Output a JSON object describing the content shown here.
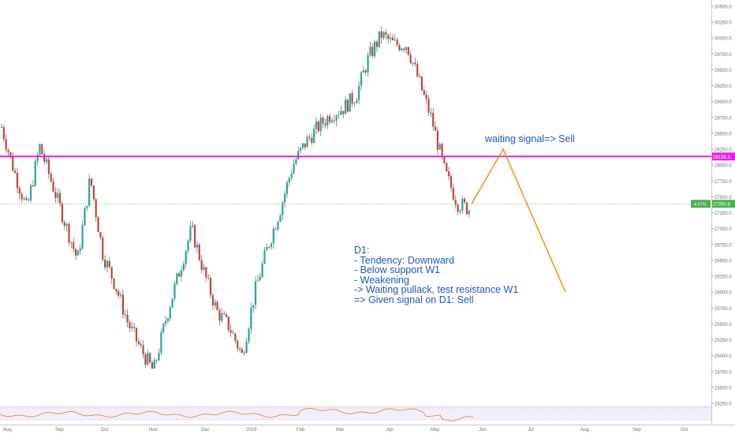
{
  "chart_data": {
    "type": "candlestick",
    "title": "",
    "xlabel": "",
    "ylabel": "",
    "ylim": [
      24150,
      30550
    ],
    "x_ticks": [
      "Aug",
      "Sep",
      "Oct",
      "Nov",
      "Dec",
      "2019",
      "Feb",
      "Mar",
      "Apr",
      "May",
      "Jun",
      "Jul",
      "Aug",
      "Sep",
      "Oct"
    ],
    "y_ticks": [
      "30500.0",
      "30250.0",
      "30000.0",
      "29750.0",
      "29500.0",
      "29250.0",
      "29000.0",
      "28750.0",
      "28500.0",
      "28250.0",
      "28000.0",
      "27750.0",
      "27500.0",
      "27250.0",
      "27000.0",
      "26750.0",
      "26500.0",
      "26250.0",
      "26000.0",
      "25750.0",
      "25500.0",
      "25250.0",
      "25000.0",
      "24750.0",
      "24500.0",
      "24250.0"
    ],
    "grid": false,
    "path_points": [
      [
        "Aug",
        28600
      ],
      [
        "Aug",
        27900
      ],
      [
        "Aug",
        27300
      ],
      [
        "Sep",
        28300
      ],
      [
        "Sep",
        27700
      ],
      [
        "Sep",
        27100
      ],
      [
        "Sep",
        26500
      ],
      [
        "Oct",
        27800
      ],
      [
        "Oct",
        26600
      ],
      [
        "Oct",
        26100
      ],
      [
        "Oct",
        25500
      ],
      [
        "Nov",
        25100
      ],
      [
        "Nov",
        24750
      ],
      [
        "Nov",
        25600
      ],
      [
        "Nov",
        26300
      ],
      [
        "Dec",
        27000
      ],
      [
        "Dec",
        26300
      ],
      [
        "Dec",
        25700
      ],
      [
        "Dec",
        25450
      ],
      [
        "2019",
        25000
      ],
      [
        "2019",
        26000
      ],
      [
        "2019",
        26700
      ],
      [
        "2019",
        27300
      ],
      [
        "Feb",
        28000
      ],
      [
        "Feb",
        28350
      ],
      [
        "Feb",
        28600
      ],
      [
        "Mar",
        28800
      ],
      [
        "Mar",
        28900
      ],
      [
        "Mar",
        29100
      ],
      [
        "Apr",
        29700
      ],
      [
        "Apr",
        30050
      ],
      [
        "Apr",
        29900
      ],
      [
        "May",
        29900
      ],
      [
        "May",
        29300
      ],
      [
        "May",
        28700
      ],
      [
        "May",
        27900
      ],
      [
        "May",
        27400
      ],
      [
        "Jun",
        27300
      ]
    ],
    "levels": [
      {
        "value": 28135.3,
        "label": "28135.3",
        "color": "#e91ee6"
      },
      {
        "value": 27390.8,
        "label": "27390.8",
        "change": "-4.67%",
        "color": "#4caf50"
      }
    ],
    "projection": [
      [
        "Jun",
        27390
      ],
      [
        "Jun",
        28250
      ],
      [
        "Jul",
        26000
      ]
    ],
    "color_up": "#26a69a",
    "color_down": "#c0453a",
    "annotations": {
      "signal": "waiting signal=> Sell",
      "analysis": "D1:\n- Tendency: Downward\n- Below support W1\n- Weakening\n-> Waiting pullack, test resistance W1\n=> Given signal on D1: Sell"
    }
  }
}
